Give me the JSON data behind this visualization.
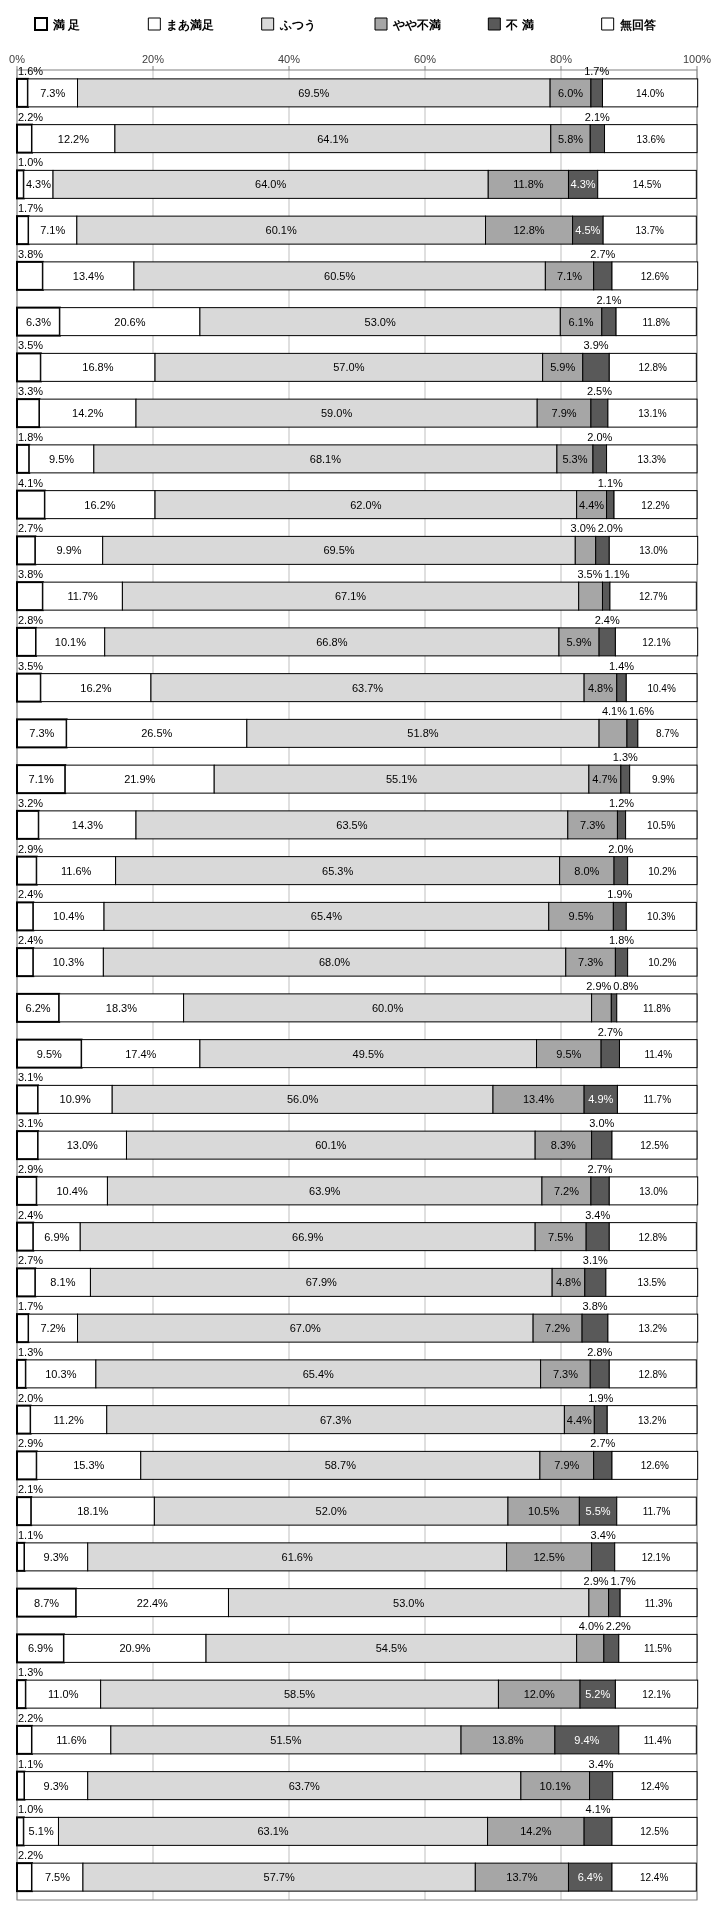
{
  "chart_data": {
    "type": "bar",
    "orientation": "horizontal",
    "stacked": true,
    "grid": "x",
    "legend": "top",
    "categories": [
      null,
      null,
      null,
      null,
      null,
      null,
      null,
      null,
      null,
      null,
      null,
      null,
      null,
      null,
      null,
      null,
      null,
      null,
      null,
      null,
      null,
      null,
      null,
      null,
      null,
      null,
      null,
      null,
      null,
      null,
      null,
      null,
      null,
      null,
      null,
      null,
      null,
      null,
      null,
      null
    ],
    "xlim": [
      0,
      100
    ],
    "xticks": [
      {
        "value": 0,
        "label": "0%"
      },
      {
        "value": 20,
        "label": "20%"
      },
      {
        "value": 40,
        "label": "40%"
      },
      {
        "value": 60,
        "label": "60%"
      },
      {
        "value": 80,
        "label": "80%"
      },
      {
        "value": 100,
        "label": "100%"
      }
    ],
    "series": [
      {
        "name": "満 足",
        "color": "#ffffff",
        "values": [
          1.6,
          2.2,
          1.0,
          1.7,
          3.8,
          6.3,
          3.5,
          3.3,
          1.8,
          4.1,
          2.7,
          3.8,
          2.8,
          3.5,
          7.3,
          7.1,
          3.2,
          2.9,
          2.4,
          2.4,
          6.2,
          9.5,
          3.1,
          3.1,
          2.9,
          2.4,
          2.7,
          1.7,
          1.3,
          2.0,
          2.9,
          2.1,
          1.1,
          8.7,
          6.9,
          1.3,
          2.2,
          1.1,
          1.0,
          2.2
        ],
        "value_labels": [
          "1.6%",
          "2.2%",
          "1.0%",
          "1.7%",
          "3.8%",
          "6.3%",
          "3.5%",
          "3.3%",
          "1.8%",
          "4.1%",
          "2.7%",
          "3.8%",
          "2.8%",
          "3.5%",
          "7.3%",
          "7.1%",
          "3.2%",
          "2.9%",
          "2.4%",
          "2.4%",
          "6.2%",
          "9.5%",
          "3.1%",
          "3.1%",
          "2.9%",
          "2.4%",
          "2.7%",
          "1.7%",
          "1.3%",
          "2.0%",
          "2.9%",
          "2.1%",
          "1.1%",
          "8.7%",
          "6.9%",
          "1.3%",
          "2.2%",
          "1.1%",
          "1.0%",
          "2.2%"
        ]
      },
      {
        "name": "まあ満足",
        "color": "#ffffff",
        "values": [
          7.3,
          12.2,
          4.3,
          7.1,
          13.4,
          20.6,
          16.8,
          14.2,
          9.5,
          16.2,
          9.9,
          11.7,
          10.1,
          16.2,
          26.5,
          21.9,
          14.3,
          11.6,
          10.4,
          10.3,
          18.3,
          17.4,
          10.9,
          13.0,
          10.4,
          6.9,
          8.1,
          7.2,
          10.3,
          11.2,
          15.3,
          18.1,
          9.3,
          22.4,
          20.9,
          11.0,
          11.6,
          9.3,
          5.1,
          7.5
        ],
        "value_labels": [
          "7.3%",
          "12.2%",
          "4.3%",
          "7.1%",
          "13.4%",
          "20.6%",
          "16.8%",
          "14.2%",
          "9.5%",
          "16.2%",
          "9.9%",
          "11.7%",
          "10.1%",
          "16.2%",
          "26.5%",
          "21.9%",
          "14.3%",
          "11.6%",
          "10.4%",
          "10.3%",
          "18.3%",
          "17.4%",
          "10.9%",
          "13.0%",
          "10.4%",
          "6.9%",
          "8.1%",
          "7.2%",
          "10.3%",
          "11.2%",
          "15.3%",
          "18.1%",
          "9.3%",
          "22.4%",
          "20.9%",
          "11.0%",
          "11.6%",
          "9.3%",
          "5.1%",
          "7.5%"
        ]
      },
      {
        "name": "ふつう",
        "color": "#d9d9d9",
        "values": [
          69.5,
          64.1,
          64.0,
          60.1,
          60.5,
          53.0,
          57.0,
          59.0,
          68.1,
          62.0,
          69.5,
          67.1,
          66.8,
          63.7,
          51.8,
          55.1,
          63.5,
          65.3,
          65.4,
          68.0,
          60.0,
          49.5,
          56.0,
          60.1,
          63.9,
          66.9,
          67.9,
          67.0,
          65.4,
          67.3,
          58.7,
          52.0,
          61.6,
          53.0,
          54.5,
          58.5,
          51.5,
          63.7,
          63.1,
          57.7
        ],
        "value_labels": [
          "69.5%",
          "64.1%",
          "64.0%",
          "60.1%",
          "60.5%",
          "53.0%",
          "57.0%",
          "59.0%",
          "68.1%",
          "62.0%",
          "69.5%",
          "67.1%",
          "66.8%",
          "63.7%",
          "51.8%",
          "55.1%",
          "63.5%",
          "65.3%",
          "65.4%",
          "68.0%",
          "60.0%",
          "49.5%",
          "56.0%",
          "60.1%",
          "63.9%",
          "66.9%",
          "67.9%",
          "67.0%",
          "65.4%",
          "67.3%",
          "58.7%",
          "52.0%",
          "61.6%",
          "53.0%",
          "54.5%",
          "58.5%",
          "51.5%",
          "63.7%",
          "63.1%",
          "57.7%"
        ]
      },
      {
        "name": "やや不満",
        "color": "#a6a6a6",
        "values": [
          6.0,
          5.8,
          11.8,
          12.8,
          7.1,
          6.1,
          5.9,
          7.9,
          5.3,
          4.4,
          3.0,
          3.5,
          5.9,
          4.8,
          4.1,
          4.7,
          7.3,
          8.0,
          9.5,
          7.3,
          2.9,
          9.5,
          13.4,
          8.3,
          7.2,
          7.5,
          4.8,
          7.2,
          7.3,
          4.4,
          7.9,
          10.5,
          12.5,
          2.9,
          4.0,
          12.0,
          13.8,
          10.1,
          14.2,
          13.7
        ],
        "value_labels": [
          "6.0%",
          "5.8%",
          "11.8%",
          "12.8%",
          "7.1%",
          "6.1%",
          "5.9%",
          "7.9%",
          "5.3%",
          "4.4%",
          "3.0%",
          "3.5%",
          "5.9%",
          "4.8%",
          "4.1%",
          "4.7%",
          "7.3%",
          "8.0%",
          "9.5%",
          "7.3%",
          "2.9%",
          "9.5%",
          "13.4%",
          "8.3%",
          "7.2%",
          "7.5%",
          "4.8%",
          "7.2%",
          "7.3%",
          "4.4%",
          "7.9%",
          "10.5%",
          "12.5%",
          "2.9%",
          "4.0%",
          "12.0%",
          "13.8%",
          "10.1%",
          "14.2%",
          "13.7%"
        ]
      },
      {
        "name": "不 満",
        "color": "#595959",
        "values": [
          1.7,
          2.1,
          4.3,
          4.5,
          2.7,
          2.1,
          3.9,
          2.5,
          2.0,
          1.1,
          2.0,
          1.1,
          2.4,
          1.4,
          1.6,
          1.3,
          1.2,
          2.0,
          1.9,
          1.8,
          0.8,
          2.7,
          4.9,
          3.0,
          2.7,
          3.4,
          3.1,
          3.8,
          2.8,
          1.9,
          2.7,
          5.5,
          3.4,
          1.7,
          2.2,
          5.2,
          9.4,
          3.4,
          4.1,
          6.4
        ],
        "value_labels": [
          "1.7%",
          "2.1%",
          "4.3%",
          "4.5%",
          "2.7%",
          "2.1%",
          "3.9%",
          "2.5%",
          "2.0%",
          "1.1%",
          "2.0%",
          "1.1%",
          "2.4%",
          "1.4%",
          "1.6%",
          "1.3%",
          "1.2%",
          "2.0%",
          "1.9%",
          "1.8%",
          "0.8%",
          "2.7%",
          "4.9%",
          "3.0%",
          "2.7%",
          "3.4%",
          "3.1%",
          "3.8%",
          "2.8%",
          "1.9%",
          "2.7%",
          "5.5%",
          "3.4%",
          "1.7%",
          "2.2%",
          "5.2%",
          "9.4%",
          "3.4%",
          "4.1%",
          "6.4%"
        ]
      },
      {
        "name": "無回答",
        "color": "#ffffff",
        "values": [
          14.0,
          13.6,
          14.5,
          13.7,
          12.6,
          11.8,
          12.8,
          13.1,
          13.3,
          12.2,
          13.0,
          12.7,
          12.1,
          10.4,
          8.7,
          9.9,
          10.5,
          10.2,
          10.3,
          10.2,
          11.8,
          11.4,
          11.7,
          12.5,
          13.0,
          12.8,
          13.5,
          13.2,
          12.8,
          13.2,
          12.6,
          11.7,
          12.1,
          11.3,
          11.5,
          12.1,
          11.4,
          12.4,
          12.5,
          12.4
        ],
        "value_labels": [
          "14.0%",
          "13.6%",
          "14.5%",
          "13.7%",
          "12.6%",
          "11.8%",
          "12.8%",
          "13.1%",
          "13.3%",
          "12.2%",
          "13.0%",
          "12.7%",
          "12.1%",
          "10.4%",
          "8.7%",
          "9.9%",
          "10.5%",
          "10.2%",
          "10.3%",
          "10.2%",
          "11.8%",
          "11.4%",
          "11.7%",
          "12.5%",
          "13.0%",
          "12.8%",
          "13.5%",
          "13.2%",
          "12.8%",
          "13.2%",
          "12.6%",
          "11.7%",
          "12.1%",
          "11.3%",
          "11.5%",
          "12.1%",
          "11.4%",
          "12.4%",
          "12.5%",
          "12.4%"
        ]
      }
    ]
  }
}
